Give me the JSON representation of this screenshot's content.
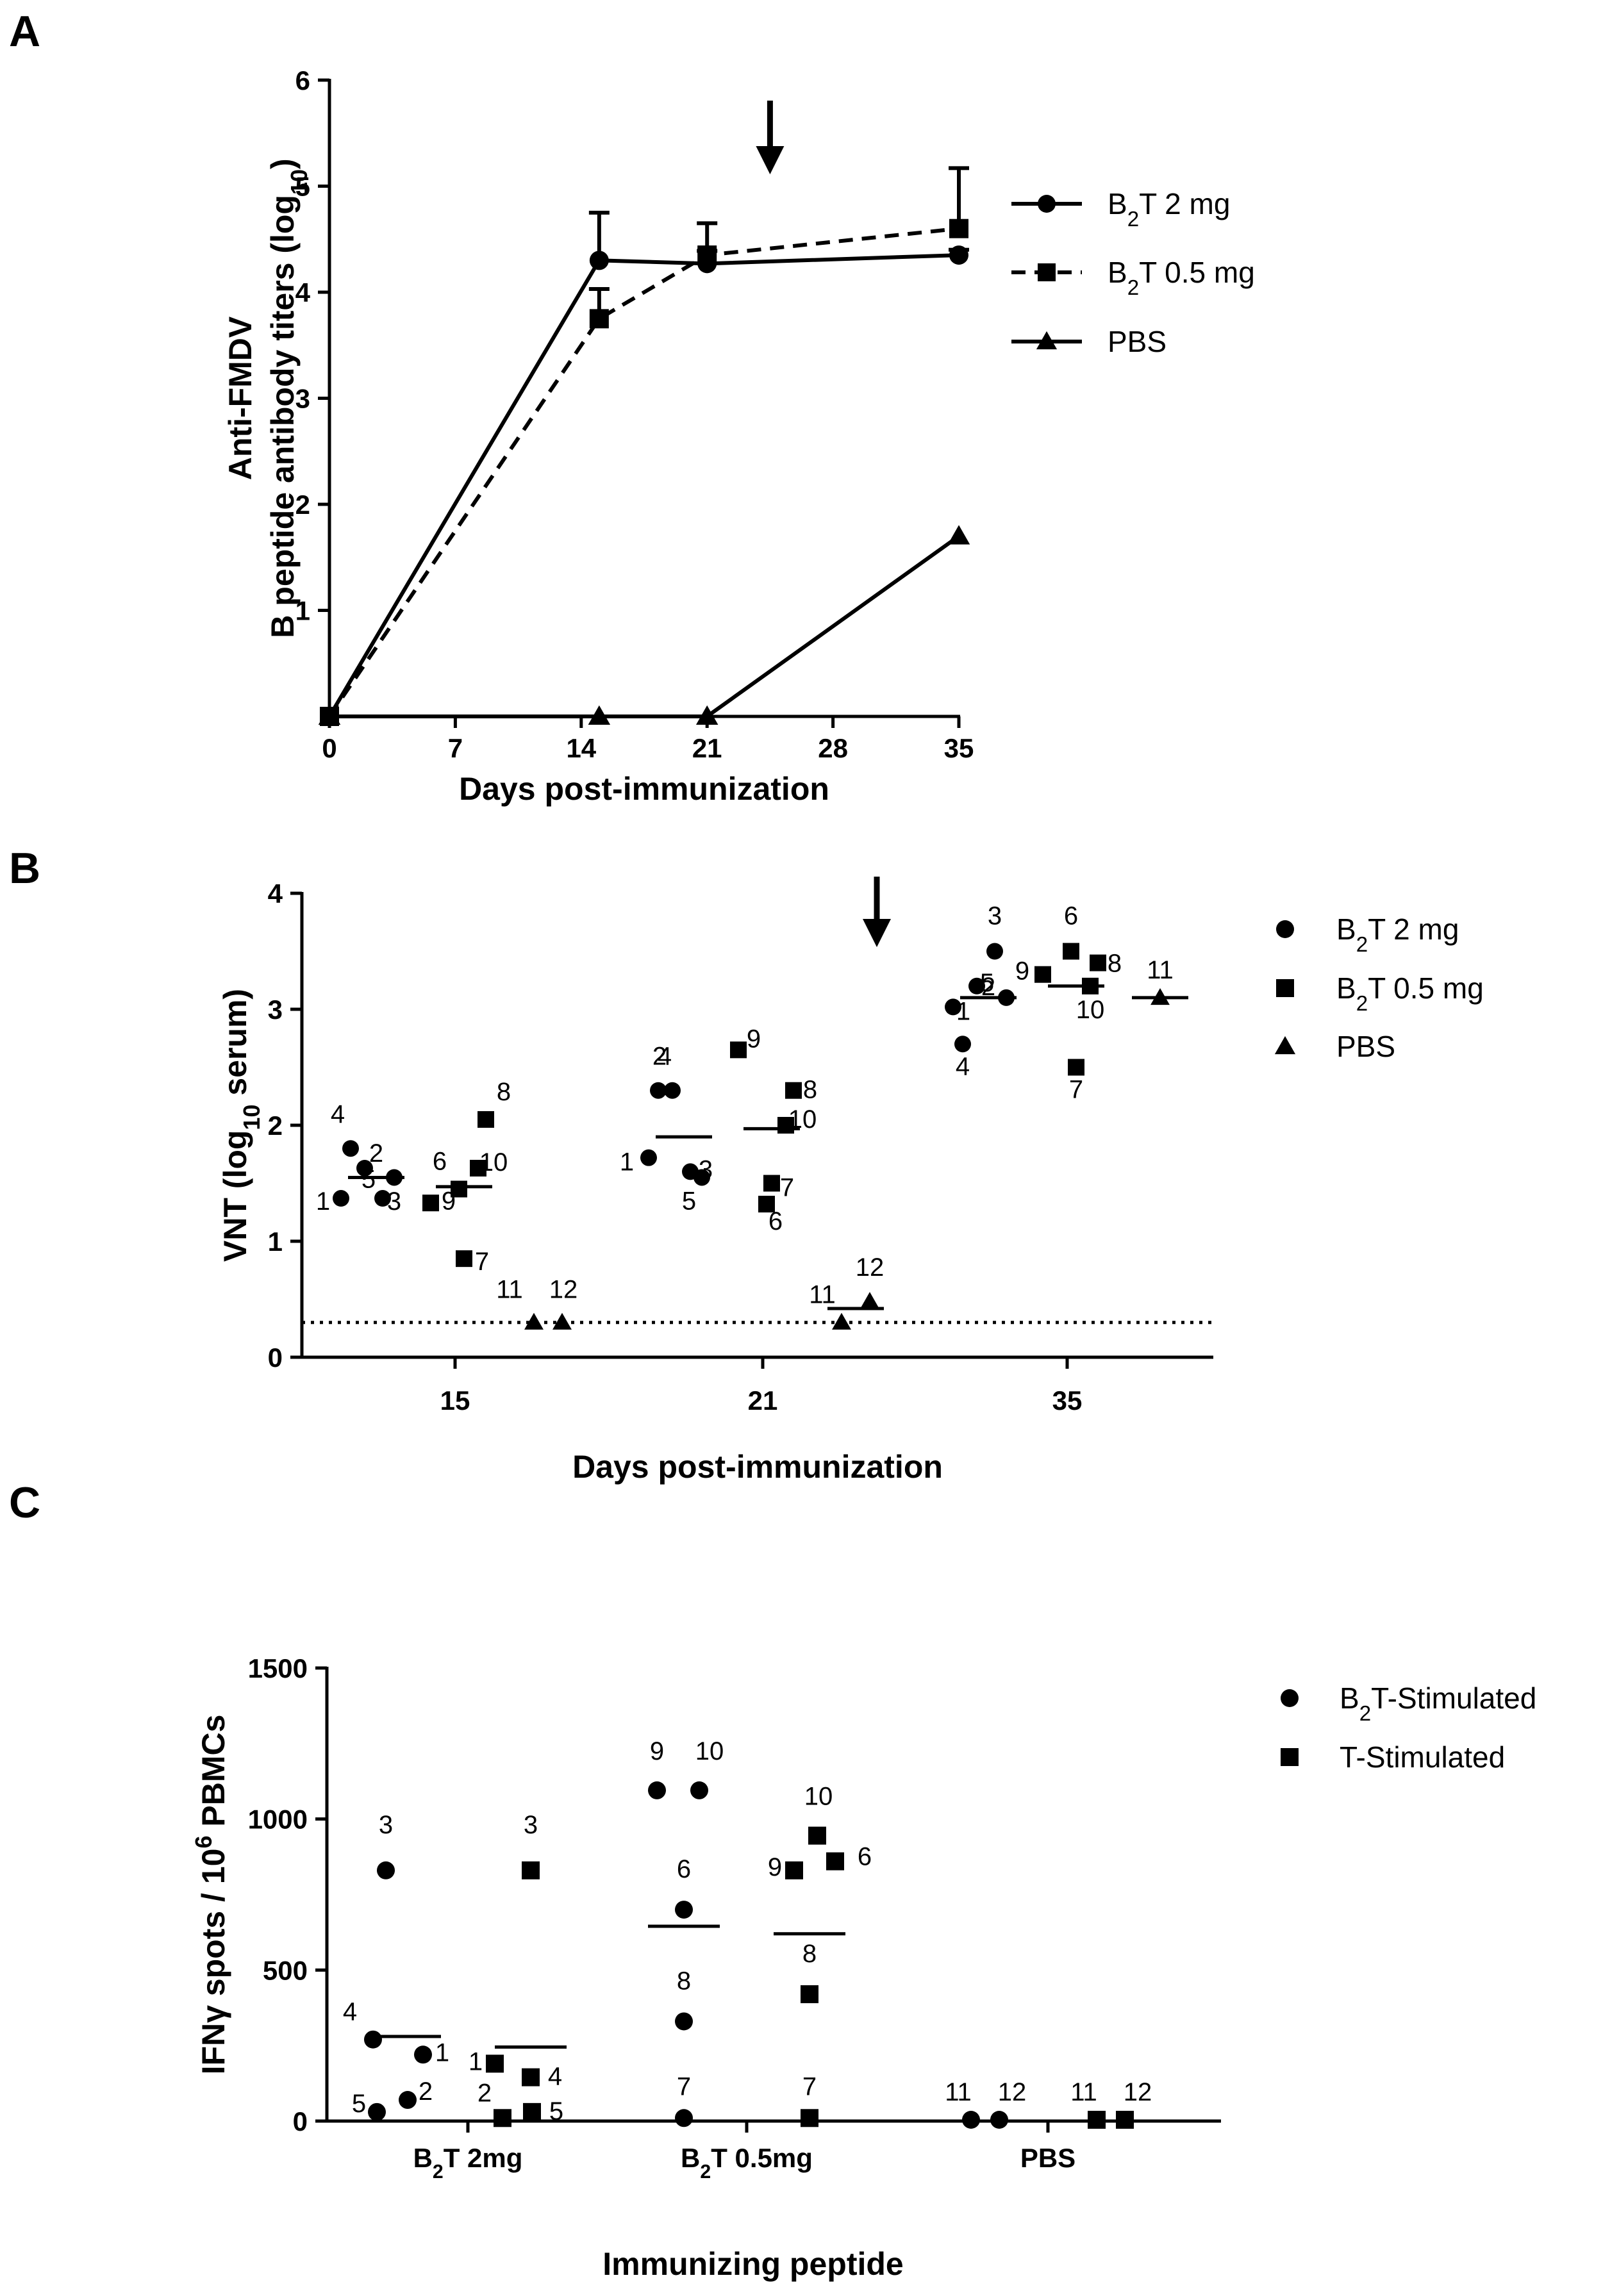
{
  "chart_data": [
    {
      "panel": "A",
      "type": "line",
      "ylabel_line1": "Anti-FMDV",
      "ylabel_line2_pre": "B peptide antibody titers (log",
      "ylabel_line2_sub": "10",
      "ylabel_line2_post": ")",
      "xlabel": "Days post-immunization",
      "xlim": [
        0,
        35
      ],
      "ylim": [
        0,
        6
      ],
      "xticks": [
        "0",
        "7",
        "14",
        "21",
        "28",
        "35"
      ],
      "yticks": [
        "1",
        "2",
        "3",
        "4",
        "5",
        "6"
      ],
      "booster_arrow_day": 24.5,
      "series": [
        {
          "name_pre": "B",
          "name_sub": "2",
          "name_post": "T 2 mg",
          "marker": "circle",
          "style": "solid",
          "x": [
            0,
            15,
            21,
            35
          ],
          "y": [
            0,
            4.3,
            4.27,
            4.35
          ],
          "err": [
            0,
            0.45,
            0.12,
            0.05
          ]
        },
        {
          "name_pre": "B",
          "name_sub": "2",
          "name_post": "T 0.5 mg",
          "marker": "square",
          "style": "dashed",
          "x": [
            0,
            15,
            21,
            35
          ],
          "y": [
            0,
            3.75,
            4.35,
            4.6
          ],
          "err": [
            0,
            0.28,
            0.3,
            0.57
          ]
        },
        {
          "name_pre": "",
          "name_sub": "",
          "name_post": "PBS",
          "marker": "triangle",
          "style": "solid",
          "x": [
            0,
            15,
            21,
            35
          ],
          "y": [
            0,
            0,
            0,
            1.7
          ],
          "err": [
            0,
            0,
            0,
            0
          ]
        }
      ]
    },
    {
      "panel": "B",
      "type": "scatter",
      "ylabel_pre": "VNT (log",
      "ylabel_sub": "10",
      "ylabel_post": " serum)",
      "xlabel": "Days post-immunization",
      "ylim": [
        0,
        4
      ],
      "yticks": [
        "0",
        "1",
        "2",
        "3",
        "4"
      ],
      "categories": [
        "15",
        "21",
        "35"
      ],
      "detection_limit": 0.3,
      "legend": [
        {
          "marker": "circle",
          "pre": "B",
          "sub": "2",
          "post": "T 2 mg"
        },
        {
          "marker": "square",
          "pre": "B",
          "sub": "2",
          "post": "T 0.5 mg"
        },
        {
          "marker": "triangle",
          "pre": "",
          "sub": "",
          "post": "PBS"
        }
      ],
      "groups": [
        {
          "day": "15",
          "series": "B2T 2 mg",
          "marker": "circle",
          "mean": 1.55,
          "points": [
            {
              "id": "1",
              "y": 1.37
            },
            {
              "id": "2",
              "y": 1.63
            },
            {
              "id": "3",
              "y": 1.37
            },
            {
              "id": "4",
              "y": 1.8
            },
            {
              "id": "5",
              "y": 1.55
            }
          ]
        },
        {
          "day": "15",
          "series": "B2T 0.5 mg",
          "marker": "square",
          "mean": 1.47,
          "points": [
            {
              "id": "6",
              "y": 1.45
            },
            {
              "id": "7",
              "y": 0.85
            },
            {
              "id": "8",
              "y": 2.05
            },
            {
              "id": "9",
              "y": 1.33
            },
            {
              "id": "10",
              "y": 1.63
            }
          ]
        },
        {
          "day": "15",
          "series": "PBS",
          "marker": "triangle",
          "mean": null,
          "points": [
            {
              "id": "11",
              "y": 0.3
            },
            {
              "id": "12",
              "y": 0.3
            }
          ]
        },
        {
          "day": "21",
          "series": "B2T 2 mg",
          "marker": "circle",
          "mean": 1.9,
          "points": [
            {
              "id": "1",
              "y": 1.72
            },
            {
              "id": "2",
              "y": 2.3
            },
            {
              "id": "3",
              "y": 1.6
            },
            {
              "id": "4",
              "y": 2.3
            },
            {
              "id": "5",
              "y": 1.55
            }
          ]
        },
        {
          "day": "21",
          "series": "B2T 0.5 mg",
          "marker": "square",
          "mean": 1.97,
          "points": [
            {
              "id": "6",
              "y": 1.32
            },
            {
              "id": "7",
              "y": 1.5
            },
            {
              "id": "8",
              "y": 2.3
            },
            {
              "id": "9",
              "y": 2.65
            },
            {
              "id": "10",
              "y": 2.0
            }
          ]
        },
        {
          "day": "21",
          "series": "PBS",
          "marker": "triangle",
          "mean": 0.42,
          "points": [
            {
              "id": "11",
              "y": 0.3
            },
            {
              "id": "12",
              "y": 0.48
            }
          ]
        },
        {
          "day": "35",
          "series": "B2T 2 mg",
          "marker": "circle",
          "mean": 3.1,
          "points": [
            {
              "id": "1",
              "y": 3.02
            },
            {
              "id": "2",
              "y": 3.2
            },
            {
              "id": "3",
              "y": 3.5
            },
            {
              "id": "4",
              "y": 2.7
            },
            {
              "id": "5",
              "y": 3.1
            }
          ]
        },
        {
          "day": "35",
          "series": "B2T 0.5 mg",
          "marker": "square",
          "mean": 3.2,
          "points": [
            {
              "id": "6",
              "y": 3.5
            },
            {
              "id": "7",
              "y": 2.5
            },
            {
              "id": "8",
              "y": 3.4
            },
            {
              "id": "9",
              "y": 3.3
            },
            {
              "id": "10",
              "y": 3.2
            }
          ]
        },
        {
          "day": "35",
          "series": "PBS",
          "marker": "triangle",
          "mean": 3.1,
          "points": [
            {
              "id": "11",
              "y": 3.1
            }
          ]
        }
      ]
    },
    {
      "panel": "C",
      "type": "scatter",
      "ylabel_pre": "IFNγ spots / 10",
      "ylabel_sup": "6",
      "ylabel_post": " PBMCs",
      "xlabel": "Immunizing peptide",
      "ylim": [
        0,
        1500
      ],
      "yticks": [
        "0",
        "500",
        "1000",
        "1500"
      ],
      "categories": [
        {
          "pre": "B",
          "sub": "2",
          "post": "T 2mg"
        },
        {
          "pre": "B",
          "sub": "2",
          "post": "T 0.5mg"
        },
        {
          "pre": "",
          "sub": "",
          "post": "PBS"
        }
      ],
      "legend": [
        {
          "marker": "circle",
          "pre": "B",
          "sub": "2",
          "post": "T-Stimulated"
        },
        {
          "marker": "square",
          "pre": "",
          "sub": "",
          "post": "T-Stimulated"
        }
      ],
      "groups": [
        {
          "category": "B2T 2mg",
          "series": "B2T-Stimulated",
          "marker": "circle",
          "mean": 280,
          "points": [
            {
              "id": "1",
              "y": 220
            },
            {
              "id": "2",
              "y": 70
            },
            {
              "id": "3",
              "y": 830
            },
            {
              "id": "4",
              "y": 270
            },
            {
              "id": "5",
              "y": 30
            }
          ]
        },
        {
          "category": "B2T 2mg",
          "series": "T-Stimulated",
          "marker": "square",
          "mean": 245,
          "points": [
            {
              "id": "1",
              "y": 190
            },
            {
              "id": "2",
              "y": 10
            },
            {
              "id": "3",
              "y": 830
            },
            {
              "id": "4",
              "y": 145
            },
            {
              "id": "5",
              "y": 30
            }
          ]
        },
        {
          "category": "B2T 0.5mg",
          "series": "B2T-Stimulated",
          "marker": "circle",
          "mean": 645,
          "points": [
            {
              "id": "6",
              "y": 700
            },
            {
              "id": "7",
              "y": 10
            },
            {
              "id": "8",
              "y": 330
            },
            {
              "id": "9",
              "y": 1095
            },
            {
              "id": "10",
              "y": 1095
            }
          ]
        },
        {
          "category": "B2T 0.5mg",
          "series": "T-Stimulated",
          "marker": "square",
          "mean": 620,
          "points": [
            {
              "id": "6",
              "y": 860
            },
            {
              "id": "7",
              "y": 10
            },
            {
              "id": "8",
              "y": 420
            },
            {
              "id": "9",
              "y": 830
            },
            {
              "id": "10",
              "y": 945
            }
          ]
        },
        {
          "category": "PBS",
          "series": "B2T-Stimulated",
          "marker": "circle",
          "mean": null,
          "points": [
            {
              "id": "11",
              "y": 0
            },
            {
              "id": "12",
              "y": 0
            }
          ]
        },
        {
          "category": "PBS",
          "series": "T-Stimulated",
          "marker": "square",
          "mean": null,
          "points": [
            {
              "id": "11",
              "y": 0
            },
            {
              "id": "12",
              "y": 0
            }
          ]
        }
      ]
    }
  ]
}
